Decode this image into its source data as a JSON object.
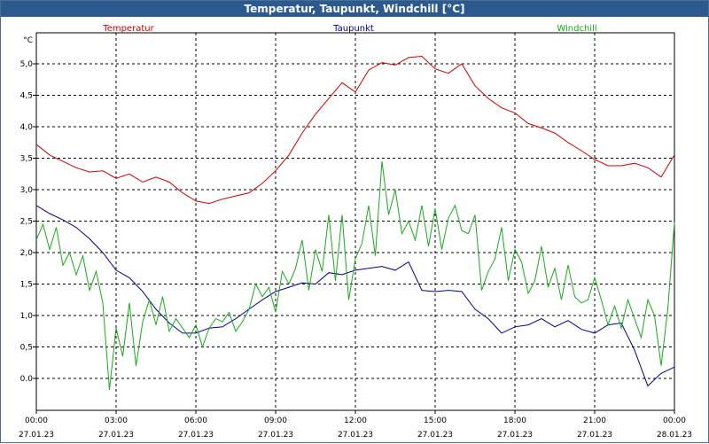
{
  "window": {
    "title": "Temperatur, Taupunkt, Windchill [°C]"
  },
  "chart_data": {
    "type": "line",
    "ylabel": "°C",
    "ylim": [
      -0.25,
      5.4
    ],
    "yticks": [
      "0.0",
      "0,5",
      "1,0",
      "1,5",
      "2,0",
      "2,5",
      "3,0",
      "3,5",
      "4,0",
      "4,5",
      "5,0"
    ],
    "ytick_values": [
      0,
      0.5,
      1.0,
      1.5,
      2.0,
      2.5,
      3.0,
      3.5,
      4.0,
      4.5,
      5.0
    ],
    "xlim_hours": [
      0,
      24
    ],
    "xticks": [
      {
        "time": "00:00",
        "date": "27.01.23",
        "hour": 0
      },
      {
        "time": "03:00",
        "date": "27.01.23",
        "hour": 3
      },
      {
        "time": "06:00",
        "date": "27.01.23",
        "hour": 6
      },
      {
        "time": "09:00",
        "date": "27.01.23",
        "hour": 9
      },
      {
        "time": "12:00",
        "date": "27.01.23",
        "hour": 12
      },
      {
        "time": "15:00",
        "date": "27.01.23",
        "hour": 15
      },
      {
        "time": "18:00",
        "date": "27.01.23",
        "hour": 18
      },
      {
        "time": "21:00",
        "date": "27.01.23",
        "hour": 21
      },
      {
        "time": "00:00",
        "date": "28.01.23",
        "hour": 24
      }
    ],
    "grid": true,
    "legend_placement": "top",
    "series": [
      {
        "name": "Temperatur",
        "color": "#cc0000",
        "x": [
          0,
          0.5,
          1,
          1.5,
          2,
          2.5,
          3,
          3.5,
          4,
          4.5,
          5,
          5.5,
          6,
          6.5,
          7,
          7.5,
          8,
          8.5,
          9,
          9.5,
          10,
          10.5,
          11,
          11.5,
          12,
          12.5,
          13,
          13.5,
          14,
          14.5,
          15,
          15.5,
          16,
          16.5,
          17,
          17.5,
          18,
          18.5,
          19,
          19.5,
          20,
          20.5,
          21,
          21.5,
          22,
          22.5,
          23,
          23.5,
          24
        ],
        "y": [
          3.72,
          3.55,
          3.45,
          3.35,
          3.28,
          3.3,
          3.18,
          3.25,
          3.12,
          3.2,
          3.12,
          2.95,
          2.82,
          2.78,
          2.85,
          2.9,
          2.95,
          3.1,
          3.3,
          3.55,
          3.9,
          4.2,
          4.45,
          4.7,
          4.55,
          4.9,
          5.02,
          4.98,
          5.1,
          5.12,
          4.92,
          4.85,
          5.0,
          4.65,
          4.45,
          4.3,
          4.22,
          4.05,
          3.98,
          3.9,
          3.75,
          3.62,
          3.48,
          3.38,
          3.38,
          3.42,
          3.35,
          3.2,
          3.55
        ]
      },
      {
        "name": "Taupunkt",
        "color": "#00008b",
        "x": [
          0,
          0.5,
          1,
          1.5,
          2,
          2.5,
          3,
          3.5,
          4,
          4.5,
          5,
          5.5,
          6,
          6.5,
          7,
          7.5,
          8,
          8.5,
          9,
          9.5,
          10,
          10.5,
          11,
          11.5,
          12,
          12.5,
          13,
          13.5,
          14,
          14.5,
          15,
          15.5,
          16,
          16.5,
          17,
          17.5,
          18,
          18.5,
          19,
          19.5,
          20,
          20.5,
          21,
          21.5,
          22,
          22.5,
          23,
          23.5,
          24
        ],
        "y": [
          2.75,
          2.62,
          2.52,
          2.4,
          2.22,
          2.0,
          1.72,
          1.6,
          1.38,
          1.1,
          0.88,
          0.72,
          0.72,
          0.8,
          0.82,
          0.95,
          1.1,
          1.25,
          1.38,
          1.45,
          1.52,
          1.5,
          1.68,
          1.65,
          1.72,
          1.75,
          1.78,
          1.72,
          1.85,
          1.4,
          1.38,
          1.4,
          1.38,
          1.1,
          0.95,
          0.72,
          0.82,
          0.85,
          0.95,
          0.82,
          0.92,
          0.78,
          0.72,
          0.85,
          0.88,
          0.45,
          -0.12,
          0.08,
          0.18
        ]
      },
      {
        "name": "Windchill",
        "color": "#1aaa1a",
        "x": [
          0,
          0.25,
          0.5,
          0.75,
          1,
          1.25,
          1.5,
          1.75,
          2,
          2.25,
          2.5,
          2.75,
          3,
          3.25,
          3.5,
          3.75,
          4,
          4.25,
          4.5,
          4.75,
          5,
          5.25,
          5.5,
          5.75,
          6,
          6.25,
          6.5,
          6.75,
          7,
          7.25,
          7.5,
          7.75,
          8,
          8.25,
          8.5,
          8.75,
          9,
          9.25,
          9.5,
          9.75,
          10,
          10.25,
          10.5,
          10.75,
          11,
          11.25,
          11.5,
          11.75,
          12,
          12.25,
          12.5,
          12.75,
          13,
          13.25,
          13.5,
          13.75,
          14,
          14.25,
          14.5,
          14.75,
          15,
          15.25,
          15.5,
          15.75,
          16,
          16.25,
          16.5,
          16.75,
          17,
          17.25,
          17.5,
          17.75,
          18,
          18.25,
          18.5,
          18.75,
          19,
          19.25,
          19.5,
          19.75,
          20,
          20.25,
          20.5,
          20.75,
          21,
          21.25,
          21.5,
          21.75,
          22,
          22.25,
          22.5,
          22.75,
          23,
          23.25,
          23.5,
          23.75,
          24
        ],
        "y": [
          2.2,
          2.45,
          2.05,
          2.4,
          1.8,
          2.0,
          1.65,
          1.95,
          1.4,
          1.7,
          1.2,
          -0.18,
          0.8,
          0.35,
          1.2,
          0.2,
          0.9,
          1.25,
          0.85,
          1.3,
          0.75,
          0.95,
          0.8,
          0.65,
          0.85,
          0.5,
          0.8,
          0.95,
          0.9,
          1.05,
          0.75,
          0.9,
          1.1,
          1.5,
          1.3,
          1.45,
          1.05,
          1.7,
          1.5,
          1.75,
          2.2,
          1.4,
          2.05,
          1.7,
          2.6,
          1.55,
          2.6,
          1.25,
          1.9,
          2.15,
          2.75,
          1.95,
          3.45,
          2.6,
          3.0,
          2.3,
          2.5,
          2.2,
          2.75,
          2.1,
          2.7,
          2.05,
          2.55,
          2.75,
          2.35,
          2.3,
          2.6,
          1.4,
          1.7,
          1.9,
          2.4,
          1.55,
          2.05,
          1.85,
          1.35,
          1.55,
          2.1,
          1.45,
          1.75,
          1.25,
          1.8,
          1.3,
          1.2,
          1.25,
          1.6,
          1.25,
          0.85,
          1.15,
          0.8,
          1.25,
          0.95,
          0.65,
          1.25,
          1.0,
          0.2,
          1.1,
          2.48
        ]
      }
    ]
  }
}
